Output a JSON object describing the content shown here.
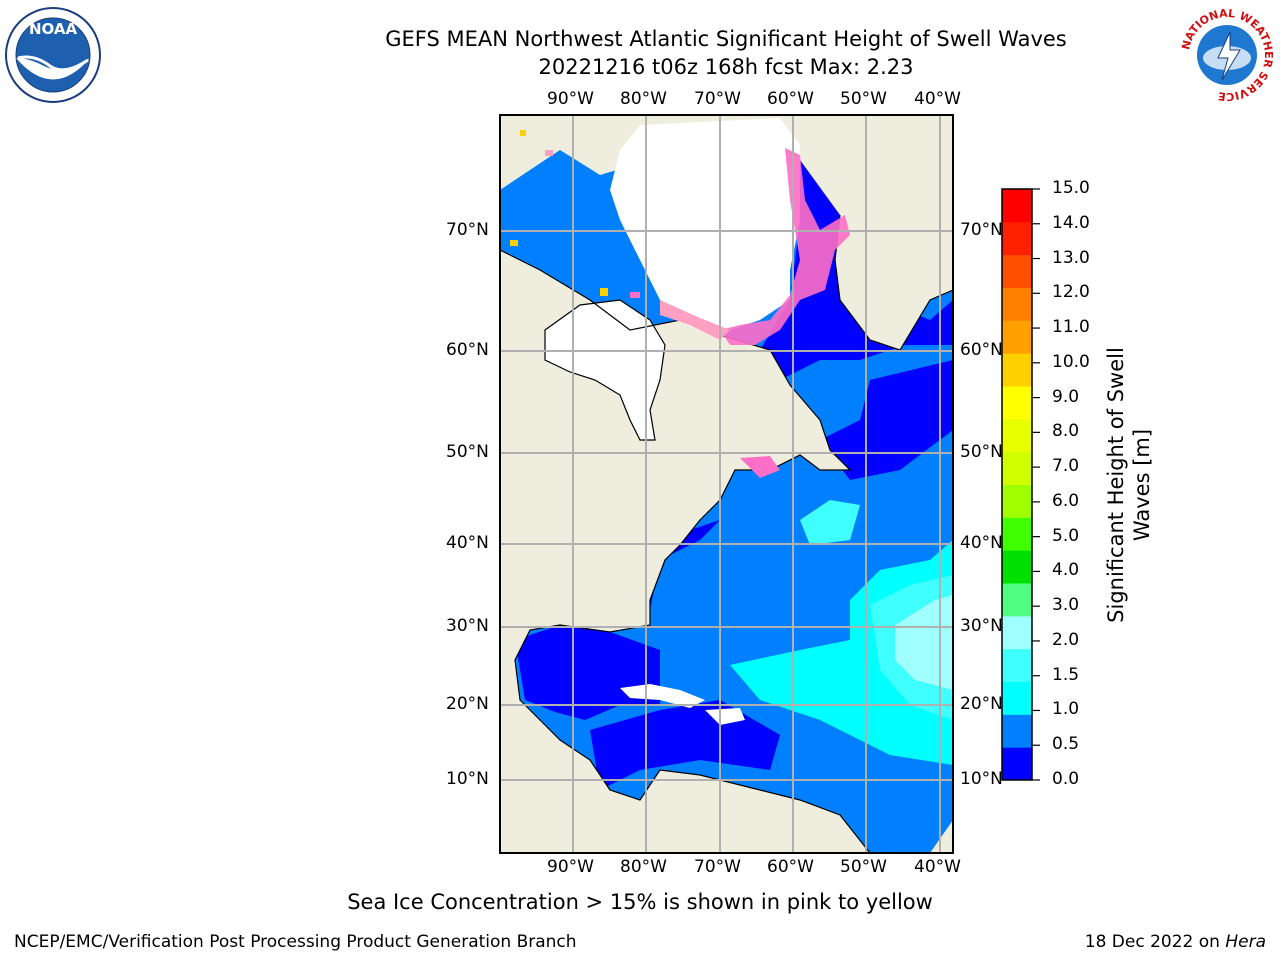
{
  "title_line1": "GEFS MEAN Northwest Atlantic Significant Height of Swell Waves",
  "title_line2": "20221216 t06z 168h fcst   Max: 2.23",
  "logos": {
    "left": "NOAA",
    "right_ring": "NATIONAL WEATHER SERVICE"
  },
  "axes": {
    "lon_labels": [
      "90°W",
      "80°W",
      "70°W",
      "60°W",
      "50°W",
      "40°W"
    ],
    "lat_labels": [
      "70°N",
      "60°N",
      "50°N",
      "40°N",
      "30°N",
      "20°N",
      "10°N"
    ]
  },
  "colorbar": {
    "title": "Significant Height of Swell Waves [m]",
    "tick_labels": [
      "15.0",
      "14.0",
      "13.0",
      "12.0",
      "11.0",
      "10.0",
      "9.0",
      "8.0",
      "7.0",
      "6.0",
      "5.0",
      "4.0",
      "3.0",
      "2.0",
      "1.5",
      "1.0",
      "0.5",
      "0.0"
    ],
    "colors": [
      "#0000ff",
      "#0080ff",
      "#00ffff",
      "#40ffff",
      "#a0ffff",
      "#50ff80",
      "#00e000",
      "#40ff00",
      "#a0ff00",
      "#d0ff00",
      "#e8ff00",
      "#ffff00",
      "#ffd000",
      "#ffa000",
      "#ff8000",
      "#ff5000",
      "#ff2000",
      "#ff0000"
    ]
  },
  "note": "Sea Ice Concentration > 15% is shown in pink to yellow",
  "footer": {
    "left": "NCEP/EMC/Verification Post Processing Product Generation Branch",
    "date": "18 Dec 2022 on ",
    "machine": "Hera"
  }
}
